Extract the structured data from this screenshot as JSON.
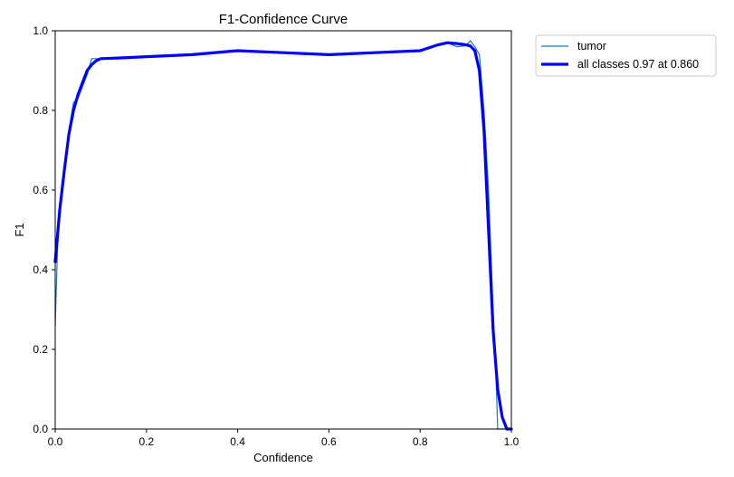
{
  "chart_data": {
    "type": "line",
    "title": "F1-Confidence Curve",
    "xlabel": "Confidence",
    "ylabel": "F1",
    "xlim": [
      0,
      1
    ],
    "ylim": [
      0,
      1
    ],
    "xticks": [
      "0.0",
      "0.2",
      "0.4",
      "0.6",
      "0.8",
      "1.0"
    ],
    "yticks": [
      "0.0",
      "0.2",
      "0.4",
      "0.6",
      "0.8",
      "1.0"
    ],
    "grid": false,
    "legend_position": "outside-top-right",
    "series": [
      {
        "name": "tumor",
        "color": "#1f77b4",
        "style": "thin",
        "x": [
          0.0,
          0.005,
          0.01,
          0.015,
          0.02,
          0.03,
          0.04,
          0.05,
          0.06,
          0.07,
          0.08,
          0.09,
          0.1,
          0.15,
          0.2,
          0.3,
          0.4,
          0.5,
          0.6,
          0.7,
          0.8,
          0.84,
          0.86,
          0.88,
          0.9,
          0.91,
          0.92,
          0.93,
          0.94,
          0.95,
          0.96,
          0.965,
          0.97,
          0.975,
          0.98,
          0.99,
          1.0
        ],
        "y": [
          0.26,
          0.45,
          0.55,
          0.62,
          0.66,
          0.75,
          0.82,
          0.83,
          0.86,
          0.89,
          0.93,
          0.93,
          0.93,
          0.932,
          0.935,
          0.94,
          0.95,
          0.945,
          0.94,
          0.945,
          0.95,
          0.965,
          0.97,
          0.96,
          0.962,
          0.975,
          0.96,
          0.94,
          0.8,
          0.6,
          0.3,
          0.18,
          0.0,
          0.0,
          0.0,
          0.0,
          0.0
        ]
      },
      {
        "name": "all classes 0.97 at 0.860",
        "color": "#0000ff",
        "style": "thick",
        "x": [
          0.0,
          0.01,
          0.02,
          0.03,
          0.04,
          0.05,
          0.06,
          0.07,
          0.08,
          0.09,
          0.1,
          0.15,
          0.2,
          0.3,
          0.4,
          0.5,
          0.6,
          0.7,
          0.8,
          0.84,
          0.86,
          0.88,
          0.9,
          0.91,
          0.92,
          0.93,
          0.94,
          0.95,
          0.96,
          0.97,
          0.98,
          0.99,
          1.0
        ],
        "y": [
          0.42,
          0.55,
          0.65,
          0.74,
          0.8,
          0.84,
          0.87,
          0.9,
          0.915,
          0.925,
          0.93,
          0.932,
          0.935,
          0.94,
          0.95,
          0.945,
          0.94,
          0.945,
          0.95,
          0.965,
          0.97,
          0.968,
          0.965,
          0.962,
          0.95,
          0.9,
          0.75,
          0.5,
          0.25,
          0.1,
          0.03,
          0.0,
          0.0
        ]
      }
    ]
  }
}
